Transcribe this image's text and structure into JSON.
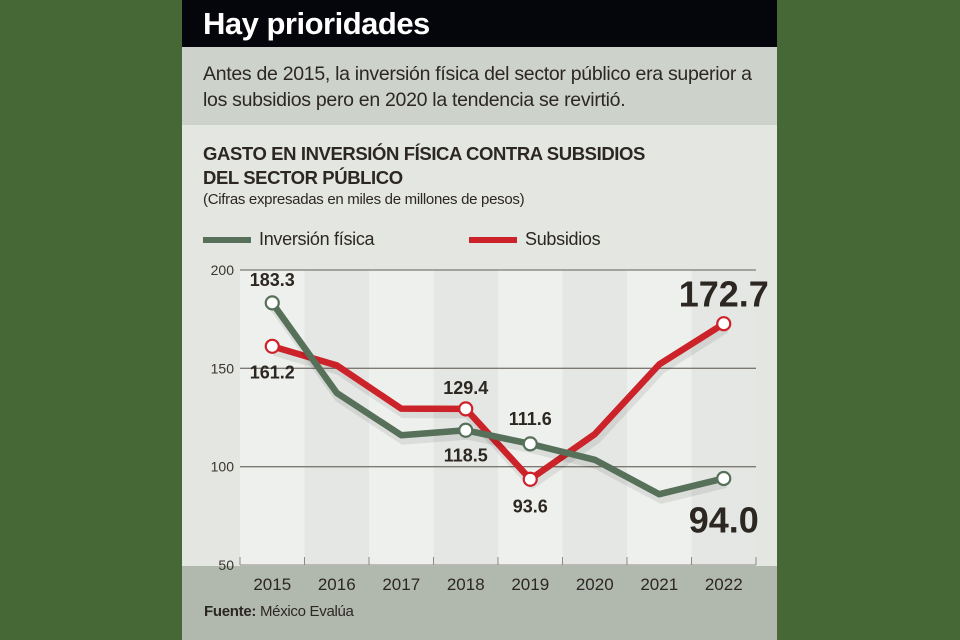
{
  "header": {
    "title": "Hay prioridades"
  },
  "intro": {
    "text": "Antes de 2015, la inversión física del sector público era superior a los subsidios pero en 2020 la tendencia se revirtió."
  },
  "source": {
    "label": "Fuente:",
    "value": "México Evalúa"
  },
  "colors": {
    "background": "#456836",
    "inversion": "#56705a",
    "subsidios": "#cc2229",
    "text": "#2d2722"
  },
  "chart_data": {
    "type": "line",
    "title": "GASTO EN INVERSIÓN FÍSICA CONTRA SUBSIDIOS DEL SECTOR PÚBLICO",
    "title_lines": [
      "GASTO EN INVERSIÓN FÍSICA CONTRA SUBSIDIOS",
      "DEL SECTOR PÚBLICO"
    ],
    "subtitle": "(Cifras expresadas en miles de millones de pesos)",
    "xlabel": "",
    "ylabel": "",
    "x": [
      "2015",
      "2016",
      "2017",
      "2018",
      "2019",
      "2020",
      "2021",
      "2022"
    ],
    "ylim": [
      50,
      200
    ],
    "yticks": [
      50,
      100,
      150,
      200
    ],
    "grid": true,
    "legend": "top-left",
    "series": [
      {
        "name": "Inversión física",
        "color": "#56705a",
        "values": [
          183.3,
          137.5,
          116.0,
          118.5,
          111.6,
          103.5,
          86.0,
          94.0
        ],
        "labels": [
          {
            "index": 0,
            "text": "183.3",
            "emphasis": false
          },
          {
            "index": 3,
            "text": "118.5",
            "emphasis": false
          },
          {
            "index": 4,
            "text": "111.6",
            "emphasis": false
          },
          {
            "index": 7,
            "text": "94.0",
            "emphasis": true
          }
        ],
        "markers": [
          0,
          3,
          4,
          7
        ]
      },
      {
        "name": "Subsidios",
        "color": "#cc2229",
        "values": [
          161.2,
          151.5,
          129.5,
          129.4,
          93.6,
          116.5,
          152.0,
          172.7
        ],
        "labels": [
          {
            "index": 0,
            "text": "161.2",
            "emphasis": false
          },
          {
            "index": 3,
            "text": "129.4",
            "emphasis": false
          },
          {
            "index": 4,
            "text": "93.6",
            "emphasis": false
          },
          {
            "index": 7,
            "text": "172.7",
            "emphasis": true
          }
        ],
        "markers": [
          0,
          3,
          4,
          7
        ]
      }
    ]
  }
}
